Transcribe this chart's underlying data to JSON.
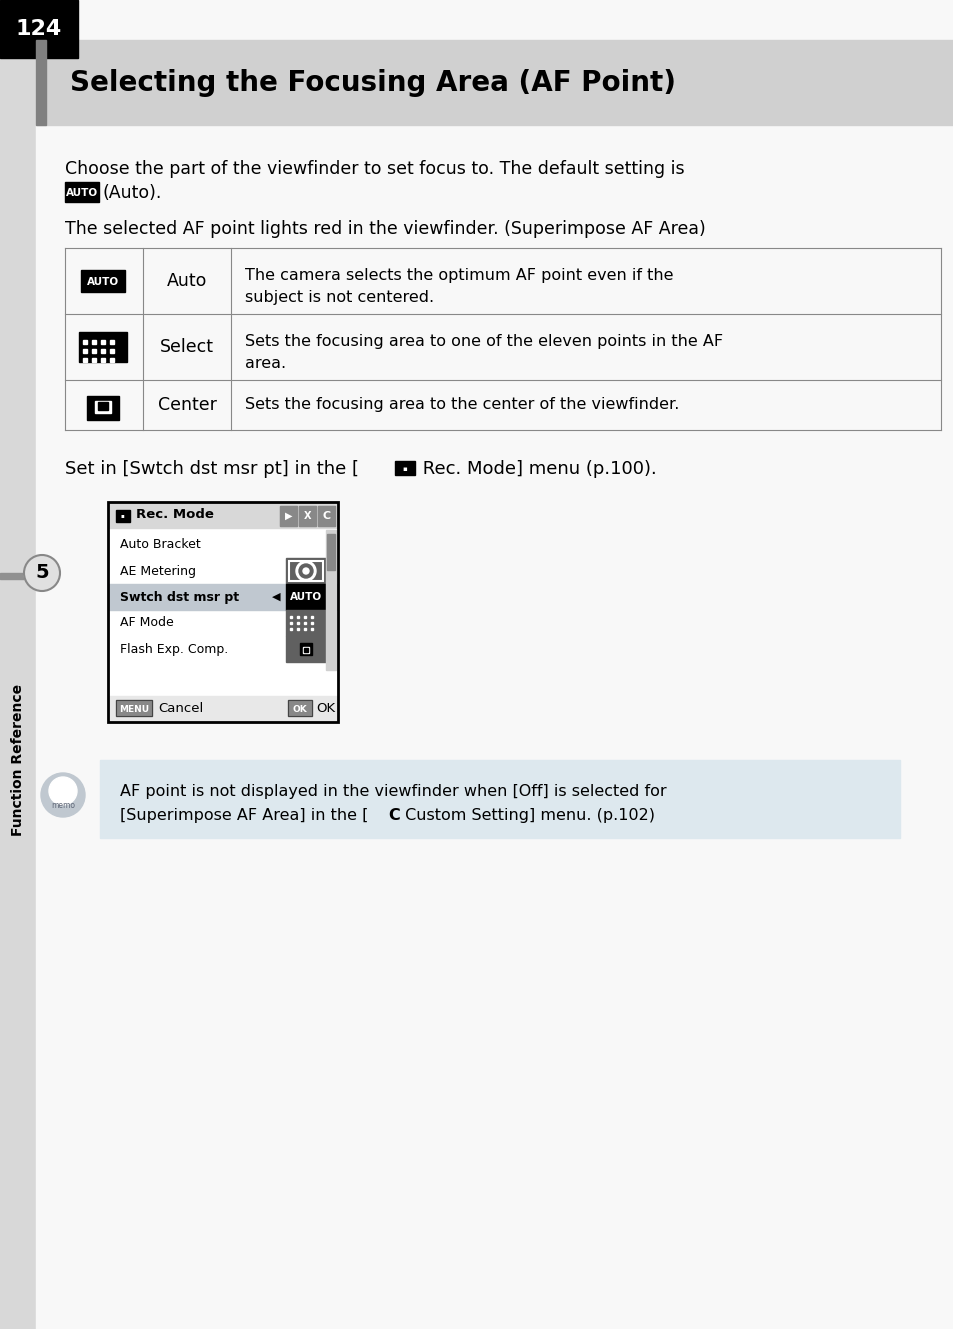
{
  "page_number": "124",
  "title": "Selecting the Focusing Area (AF Point)",
  "intro_text1": "Choose the part of the viewfinder to set focus to. The default setting is",
  "intro_text2": "(Auto).",
  "intro_text3": "The selected AF point lights red in the viewfinder. (Superimpose AF Area)",
  "table_rows": [
    {
      "icon_type": "AUTO",
      "label": "Auto",
      "description1": "The camera selects the optimum AF point even if the",
      "description2": "subject is not centered."
    },
    {
      "icon_type": "SELECT",
      "label": "Select",
      "description1": "Sets the focusing area to one of the eleven points in the AF",
      "description2": "area."
    },
    {
      "icon_type": "CENTER",
      "label": "Center",
      "description1": "Sets the focusing area to the center of the viewfinder.",
      "description2": ""
    }
  ],
  "set_text_before": "Set in [Swtch dst msr pt] in the [",
  "set_text_after": " Rec. Mode] menu (p.100).",
  "menu_title": "Rec. Mode",
  "menu_items": [
    "Auto Bracket",
    "AE Metering",
    "Swtch dst msr pt",
    "AF Mode",
    "Flash Exp. Comp."
  ],
  "menu_highlighted": 2,
  "menu_cancel": "Cancel",
  "menu_ok": "OK",
  "memo_line1": "AF point is not displayed in the viewfinder when [Off] is selected for",
  "memo_line2_pre": "[Superimpose AF Area] in the [",
  "memo_bold": "C",
  "memo_line2_post": " Custom Setting] menu. (p.102)",
  "sidebar_text": "Function Reference",
  "sidebar_number": "5",
  "bg_color": "#e8e8e8",
  "page_bg": "#f8f8f8",
  "black_color": "#000000",
  "white_color": "#ffffff",
  "table_border": "#888888",
  "title_bg": "#d0d0d0",
  "title_accent": "#808080",
  "menu_header_bg": "#d8d8d8",
  "menu_highlight_bg": "#c0c8d0",
  "memo_bg": "#dce8f0",
  "sidebar_accent_bg": "#909090"
}
